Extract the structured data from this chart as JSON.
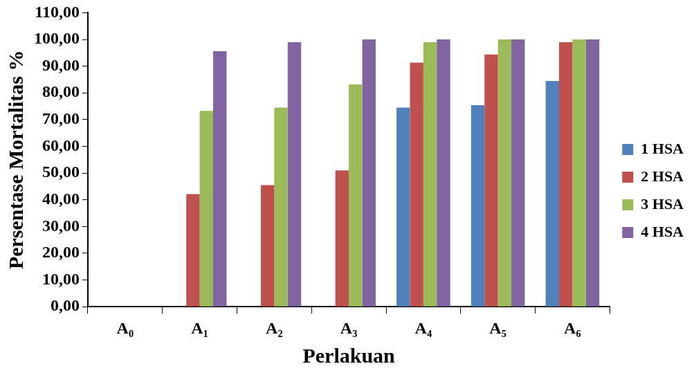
{
  "chart_data": {
    "type": "bar",
    "xlabel": "Perlakuan",
    "ylabel": "Persentase Mortalitas %",
    "categories": [
      "A₀",
      "A₁",
      "A₂",
      "A₃",
      "A₄",
      "A₅",
      "A₆"
    ],
    "series": [
      {
        "name": "1 HSA",
        "color": "#4f81bd",
        "values": [
          0,
          0,
          0,
          0,
          74.5,
          75.4,
          84.5
        ]
      },
      {
        "name": "2 HSA",
        "color": "#c0504d",
        "values": [
          0,
          42.1,
          45.5,
          51.0,
          91.3,
          94.4,
          99.0
        ]
      },
      {
        "name": "3 HSA",
        "color": "#9bbb59",
        "values": [
          0,
          73.3,
          74.5,
          83.2,
          99.0,
          100,
          100
        ]
      },
      {
        "name": "4 HSA",
        "color": "#8064a2",
        "values": [
          0,
          95.6,
          99.0,
          100,
          100,
          100,
          100
        ]
      }
    ],
    "ylim": [
      0,
      110
    ],
    "yticks": [
      {
        "value": 0,
        "label": "0,00"
      },
      {
        "value": 10,
        "label": "10,00"
      },
      {
        "value": 20,
        "label": "20,00"
      },
      {
        "value": 30,
        "label": "30,00"
      },
      {
        "value": 40,
        "label": "40,00"
      },
      {
        "value": 50,
        "label": "50,00"
      },
      {
        "value": 60,
        "label": "60,00"
      },
      {
        "value": 70,
        "label": "70,00"
      },
      {
        "value": 80,
        "label": "80,00"
      },
      {
        "value": 90,
        "label": "90,00"
      },
      {
        "value": 100,
        "label": "100,00"
      },
      {
        "value": 110,
        "label": "110,00"
      }
    ],
    "grid": false,
    "legend": "right"
  }
}
